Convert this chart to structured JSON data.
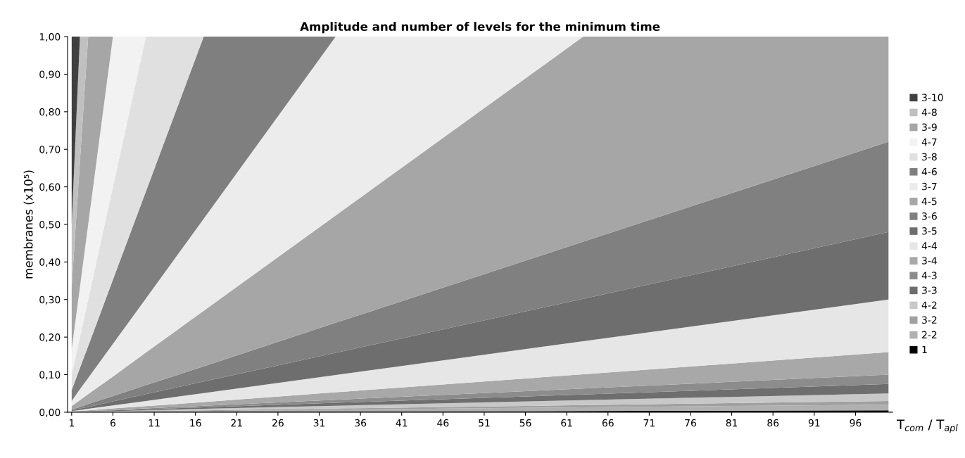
{
  "chart_data": {
    "type": "area",
    "stacked": true,
    "title": "Amplitude and number of levels for the minimum time",
    "xlabel": "T$_{com}$ / T$_{apl}$",
    "ylabel": "membranes (x10⁵)",
    "xlim": [
      0.5,
      100.5
    ],
    "xticks": [
      1,
      6,
      11,
      16,
      21,
      26,
      31,
      36,
      41,
      46,
      51,
      56,
      61,
      66,
      71,
      76,
      81,
      86,
      91,
      96
    ],
    "ylim": [
      0,
      1
    ],
    "yticks": [
      {
        "value": 0,
        "label": "0,00"
      },
      {
        "value": 0.1,
        "label": "0,10"
      },
      {
        "value": 0.2,
        "label": "0,20"
      },
      {
        "value": 0.3,
        "label": "0,30"
      },
      {
        "value": 0.4,
        "label": "0,40"
      },
      {
        "value": 0.5,
        "label": "0,50"
      },
      {
        "value": 0.6,
        "label": "0,60"
      },
      {
        "value": 0.7,
        "label": "0,70"
      },
      {
        "value": 0.8,
        "label": "0,80"
      },
      {
        "value": 0.9,
        "label": "0,90"
      },
      {
        "value": 1,
        "label": "1,00"
      }
    ],
    "grid": false,
    "legend": "right",
    "x": [
      1,
      2,
      3,
      6,
      10,
      17,
      33,
      63,
      100
    ],
    "series": [
      {
        "name": "1",
        "color": "#000000",
        "values": [
          0,
          0,
          0,
          0,
          0.001,
          0.001,
          0.002,
          0.003,
          0.005
        ]
      },
      {
        "name": "2-2",
        "color": "#b0b0b0",
        "values": [
          0,
          0,
          0.001,
          0.001,
          0.001,
          0.002,
          0.005,
          0.01,
          0.015
        ]
      },
      {
        "name": "3-2",
        "color": "#a0a0a0",
        "values": [
          0,
          0.001,
          0,
          0.001,
          0.001,
          0.002,
          0.003,
          0.006,
          0.01
        ]
      },
      {
        "name": "4-2",
        "color": "#c8c8c8",
        "values": [
          0,
          0,
          0.001,
          0.001,
          0.002,
          0.004,
          0.007,
          0.013,
          0.02
        ]
      },
      {
        "name": "3-3",
        "color": "#6e6e6e",
        "values": [
          0.001,
          0.001,
          0,
          0.002,
          0.003,
          0.004,
          0.008,
          0.015,
          0.025
        ]
      },
      {
        "name": "4-3",
        "color": "#8c8c8c",
        "values": [
          0,
          0,
          0.001,
          0.001,
          0.002,
          0.004,
          0.008,
          0.016,
          0.025
        ]
      },
      {
        "name": "3-4",
        "color": "#a8a8a8",
        "values": [
          0.001,
          0.001,
          0.002,
          0.004,
          0.006,
          0.01,
          0.02,
          0.038,
          0.06
        ]
      },
      {
        "name": "4-4",
        "color": "#e6e6e6",
        "values": [
          0.001,
          0.003,
          0.004,
          0.008,
          0.014,
          0.024,
          0.046,
          0.088,
          0.14
        ]
      },
      {
        "name": "3-5",
        "color": "#6e6e6e",
        "values": [
          0.002,
          0.004,
          0.005,
          0.011,
          0.018,
          0.031,
          0.059,
          0.113,
          0.18
        ]
      },
      {
        "name": "3-6",
        "color": "#808080",
        "values": [
          0.002,
          0.004,
          0.008,
          0.014,
          0.024,
          0.04,
          0.08,
          0.152,
          0.24
        ]
      },
      {
        "name": "4-5",
        "color": "#a6a6a6",
        "values": [
          0.009,
          0.018,
          0.026,
          0.052,
          0.087,
          0.148,
          0.286,
          0.546,
          0.28
        ]
      },
      {
        "name": "3-7",
        "color": "#ececec",
        "values": [
          0.014,
          0.029,
          0.043,
          0.087,
          0.144,
          0.245,
          0.476,
          0,
          0
        ]
      },
      {
        "name": "4-6",
        "color": "#7f7f7f",
        "values": [
          0.029,
          0.057,
          0.085,
          0.171,
          0.285,
          0.485,
          0,
          0,
          0
        ]
      },
      {
        "name": "3-8",
        "color": "#e0e0e0",
        "values": [
          0.041,
          0.082,
          0.124,
          0.247,
          0.412,
          0,
          0,
          0,
          0
        ]
      },
      {
        "name": "4-7",
        "color": "#f2f2f2",
        "values": [
          0.067,
          0.133,
          0.2,
          0.4,
          0,
          0,
          0,
          0,
          0
        ]
      },
      {
        "name": "3-9",
        "color": "#a6a6a6",
        "values": [
          0.166,
          0.334,
          0.5,
          0,
          0,
          0,
          0,
          0,
          0
        ]
      },
      {
        "name": "4-8",
        "color": "#c0c0c0",
        "values": [
          0.167,
          0.333,
          0,
          0,
          0,
          0,
          0,
          0,
          0
        ]
      },
      {
        "name": "3-10",
        "color": "#404040",
        "values": [
          0.5,
          0,
          0,
          0,
          0,
          0,
          0,
          0,
          0
        ]
      }
    ]
  }
}
